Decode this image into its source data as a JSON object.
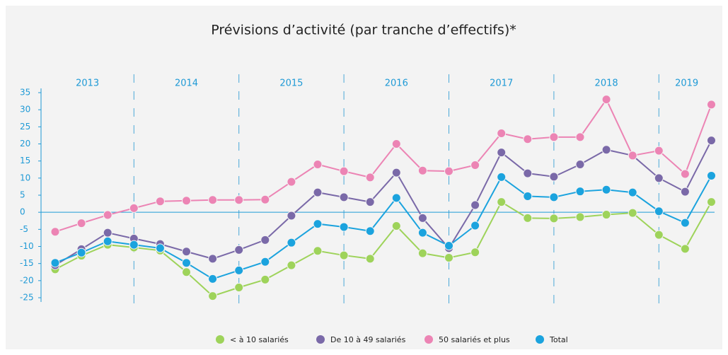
{
  "chart_data": {
    "type": "line",
    "title": "Prévisions d’activité (par tranche d’effectifs)*",
    "periods": [
      "2013",
      "2014",
      "2015",
      "2016",
      "2017",
      "2018",
      "2019"
    ],
    "categories": [
      null,
      null,
      null,
      null,
      null,
      null,
      null,
      null,
      null,
      null,
      null,
      null,
      null,
      null,
      null,
      null,
      null,
      null,
      null,
      null,
      null,
      null,
      null,
      null,
      null,
      null
    ],
    "ylim": [
      -25,
      35
    ],
    "yticks": [
      35,
      30,
      25,
      20,
      15,
      10,
      5,
      0,
      -5,
      -10,
      -15,
      -20,
      -25
    ],
    "series": [
      {
        "name": "< à 10 salariés",
        "color": "#9ed35a",
        "values": [
          -16.7,
          -12.7,
          -9.5,
          -10.3,
          -11.2,
          -17.5,
          -24.5,
          -22,
          -19.7,
          -15.5,
          -11.3,
          -12.6,
          -13.6,
          -4,
          -12,
          -13.3,
          -11.7,
          3,
          -1.7,
          -1.8,
          -1.4,
          -0.7,
          -0.2,
          -6.6,
          -10.7,
          3
        ]
      },
      {
        "name": "De 10 à 49 salariés",
        "color": "#7a69a8",
        "values": [
          -15.5,
          -10.8,
          -6,
          -7.7,
          -9.3,
          -11.5,
          -13.6,
          -11,
          -8.1,
          -1,
          5.8,
          4.4,
          3,
          11.6,
          -1.7,
          -10.5,
          2.1,
          17.5,
          11.4,
          10.4,
          14,
          18.3,
          16.6,
          10,
          6,
          21
        ]
      },
      {
        "name": "50 salariés et plus",
        "color": "#ec84b4",
        "values": [
          -5.7,
          -3.2,
          -0.8,
          1.2,
          3.2,
          3.4,
          3.6,
          3.6,
          3.7,
          8.9,
          14,
          12,
          10.2,
          20,
          12.2,
          12,
          13.8,
          23.1,
          21.4,
          22,
          22,
          33,
          16.6,
          18,
          11.2,
          31.5
        ]
      },
      {
        "name": "Total",
        "color": "#1ba3de",
        "values": [
          -14.8,
          -11.8,
          -8.5,
          -9.5,
          -10.5,
          -14.8,
          -19.5,
          -17,
          -14.5,
          -8.9,
          -3.4,
          -4.3,
          -5.5,
          4.2,
          -6,
          -9.8,
          -3.9,
          10.3,
          4.7,
          4.4,
          6.1,
          6.6,
          5.8,
          0.3,
          -3.1,
          10.7
        ]
      }
    ]
  }
}
